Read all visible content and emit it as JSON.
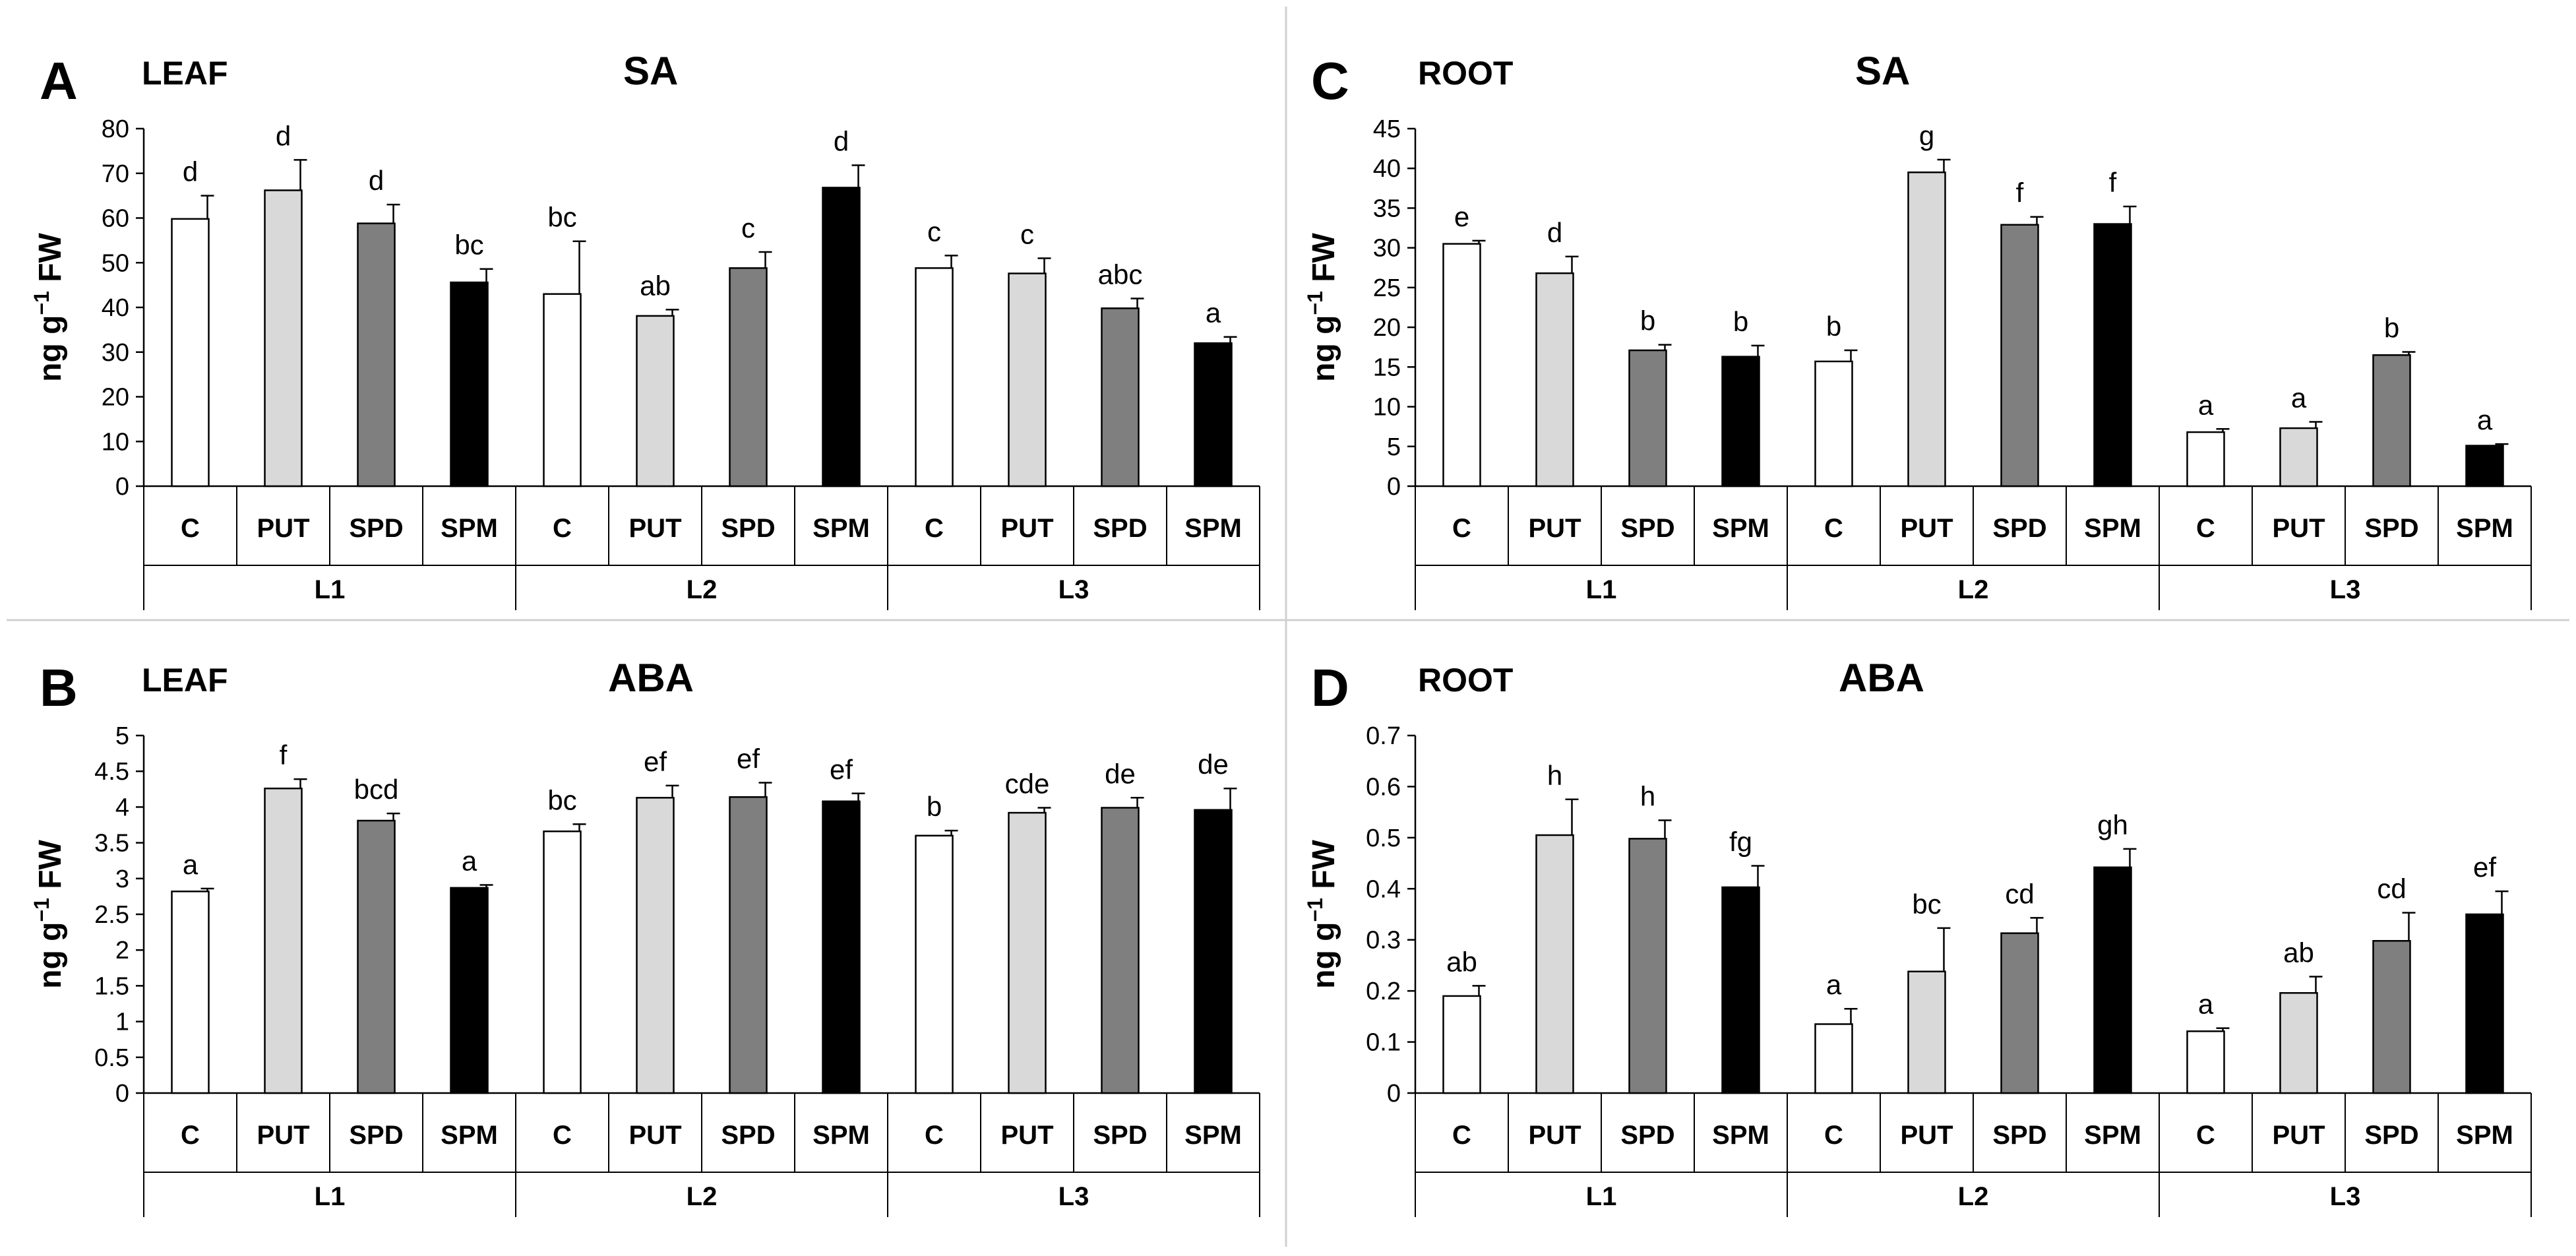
{
  "figure": {
    "bar_colors": {
      "C": "#ffffff",
      "PUT": "#d9d9d9",
      "SPD": "#7f7f7f",
      "SPM": "#000000"
    },
    "stroke_color": "#000000",
    "panel_border_color": "#d0d0d0"
  },
  "chart_data": [
    {
      "type": "bar",
      "panel_letter": "A",
      "tissue": "LEAF",
      "title": "SA",
      "ylabel": "ng g",
      "ylabel_sup": "−1",
      "ylabel_suffix": " FW",
      "ylim": [
        0,
        80
      ],
      "yticks": [
        "0",
        "10",
        "20",
        "30",
        "40",
        "50",
        "60",
        "70",
        "80"
      ],
      "yticks_values": [
        0,
        10,
        20,
        30,
        40,
        50,
        60,
        70,
        80
      ],
      "groups": [
        "L1",
        "L2",
        "L3"
      ],
      "categories": [
        "C",
        "PUT",
        "SPD",
        "SPM"
      ],
      "values": [
        [
          59.8,
          66.2,
          58.8,
          45.6
        ],
        [
          43.0,
          38.1,
          48.8,
          66.8
        ],
        [
          48.8,
          47.6,
          39.8,
          32.0
        ]
      ],
      "errors": [
        [
          5.2,
          6.8,
          4.2,
          3.0
        ],
        [
          11.8,
          1.4,
          3.6,
          5.0
        ],
        [
          2.8,
          3.4,
          2.2,
          1.4
        ]
      ],
      "letters": [
        [
          "d",
          "d",
          "d",
          "bc"
        ],
        [
          "bc",
          "ab",
          "c",
          "d"
        ],
        [
          "c",
          "c",
          "abc",
          "a"
        ]
      ]
    },
    {
      "type": "bar",
      "panel_letter": "B",
      "tissue": "LEAF",
      "title": "ABA",
      "ylabel": "ng g",
      "ylabel_sup": "−1",
      "ylabel_suffix": " FW",
      "ylim": [
        0,
        5
      ],
      "yticks": [
        "0",
        "0.5",
        "1",
        "1.5",
        "2",
        "2.5",
        "3",
        "3.5",
        "4",
        "4.5",
        "5"
      ],
      "yticks_values": [
        0,
        0.5,
        1,
        1.5,
        2,
        2.5,
        3,
        3.5,
        4,
        4.5,
        5
      ],
      "groups": [
        "L1",
        "L2",
        "L3"
      ],
      "categories": [
        "C",
        "PUT",
        "SPD",
        "SPM"
      ],
      "values": [
        [
          2.82,
          4.26,
          3.81,
          2.87
        ],
        [
          3.66,
          4.13,
          4.14,
          4.08
        ],
        [
          3.6,
          3.92,
          3.99,
          3.96
        ]
      ],
      "errors": [
        [
          0.04,
          0.13,
          0.1,
          0.04
        ],
        [
          0.1,
          0.17,
          0.2,
          0.11
        ],
        [
          0.07,
          0.07,
          0.14,
          0.3
        ]
      ],
      "letters": [
        [
          "a",
          "f",
          "bcd",
          "a"
        ],
        [
          "bc",
          "ef",
          "ef",
          "ef"
        ],
        [
          "b",
          "cde",
          "de",
          "de"
        ]
      ]
    },
    {
      "type": "bar",
      "panel_letter": "C",
      "tissue": "ROOT",
      "title": "SA",
      "ylabel": "ng g",
      "ylabel_sup": "−1",
      "ylabel_suffix": " FW",
      "ylim": [
        0,
        45
      ],
      "yticks": [
        "0",
        "5",
        "10",
        "15",
        "20",
        "25",
        "30",
        "35",
        "40",
        "45"
      ],
      "yticks_values": [
        0,
        5,
        10,
        15,
        20,
        25,
        30,
        35,
        40,
        45
      ],
      "groups": [
        "L1",
        "L2",
        "L3"
      ],
      "categories": [
        "C",
        "PUT",
        "SPD",
        "SPM"
      ],
      "values": [
        [
          30.5,
          26.8,
          17.1,
          16.3
        ],
        [
          15.7,
          39.5,
          32.9,
          33.0
        ],
        [
          6.8,
          7.3,
          16.5,
          5.1
        ]
      ],
      "errors": [
        [
          0.4,
          2.1,
          0.7,
          1.4
        ],
        [
          1.4,
          1.6,
          1.0,
          2.2
        ],
        [
          0.4,
          0.8,
          0.4,
          0.2
        ]
      ],
      "letters": [
        [
          "e",
          "d",
          "b",
          "b"
        ],
        [
          "b",
          "g",
          "f",
          "f"
        ],
        [
          "a",
          "a",
          "b",
          "a"
        ]
      ]
    },
    {
      "type": "bar",
      "panel_letter": "D",
      "tissue": "ROOT",
      "title": "ABA",
      "ylabel": "ng g",
      "ylabel_sup": "−1",
      "ylabel_suffix": " FW",
      "ylim": [
        0,
        0.7
      ],
      "yticks": [
        "0",
        "0.1",
        "0.2",
        "0.3",
        "0.4",
        "0.5",
        "0.6",
        "0.7"
      ],
      "yticks_values": [
        0,
        0.1,
        0.2,
        0.3,
        0.4,
        0.5,
        0.6,
        0.7
      ],
      "groups": [
        "L1",
        "L2",
        "L3"
      ],
      "categories": [
        "C",
        "PUT",
        "SPD",
        "SPM"
      ],
      "values": [
        [
          0.19,
          0.505,
          0.498,
          0.403
        ],
        [
          0.135,
          0.238,
          0.313,
          0.442
        ],
        [
          0.121,
          0.196,
          0.298,
          0.35
        ]
      ],
      "errors": [
        [
          0.02,
          0.07,
          0.036,
          0.042
        ],
        [
          0.03,
          0.085,
          0.03,
          0.036
        ],
        [
          0.006,
          0.032,
          0.055,
          0.045
        ]
      ],
      "letters": [
        [
          "ab",
          "h",
          "h",
          "fg"
        ],
        [
          "a",
          "bc",
          "cd",
          "gh"
        ],
        [
          "a",
          "ab",
          "cd",
          "ef"
        ]
      ]
    }
  ]
}
